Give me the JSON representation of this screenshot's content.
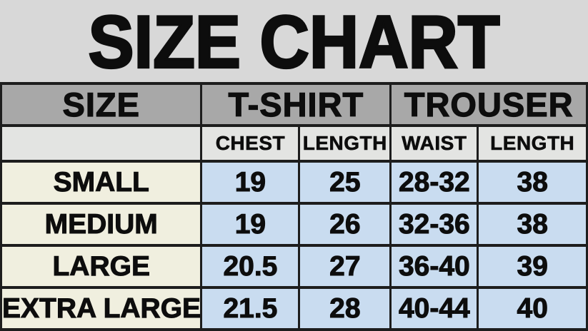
{
  "chart_data": {
    "type": "table",
    "title": "SIZE CHART",
    "column_groups": [
      {
        "label": "SIZE",
        "span": 1
      },
      {
        "label": "T-SHIRT",
        "span": 2
      },
      {
        "label": "TROUSER",
        "span": 2
      }
    ],
    "columns": [
      "",
      "CHEST",
      "LENGTH",
      "WAIST",
      "LENGTH"
    ],
    "rows": [
      [
        "SMALL",
        "19",
        "25",
        "28-32",
        "38"
      ],
      [
        "MEDIUM",
        "19",
        "26",
        "32-36",
        "38"
      ],
      [
        "LARGE",
        "20.5",
        "27",
        "36-40",
        "39"
      ],
      [
        "EXTRA LARGE",
        "21.5",
        "28",
        "40-44",
        "40"
      ]
    ]
  },
  "colors": {
    "page_background": "#d8d8d8",
    "header_row_background": "#a8a8a8",
    "subheader_row_background": "#e3e4e2",
    "size_column_background": "#f0efdf",
    "value_cell_background": "#c9dcf0",
    "border": "#1d1d1d",
    "text": "#0d0d0d"
  }
}
